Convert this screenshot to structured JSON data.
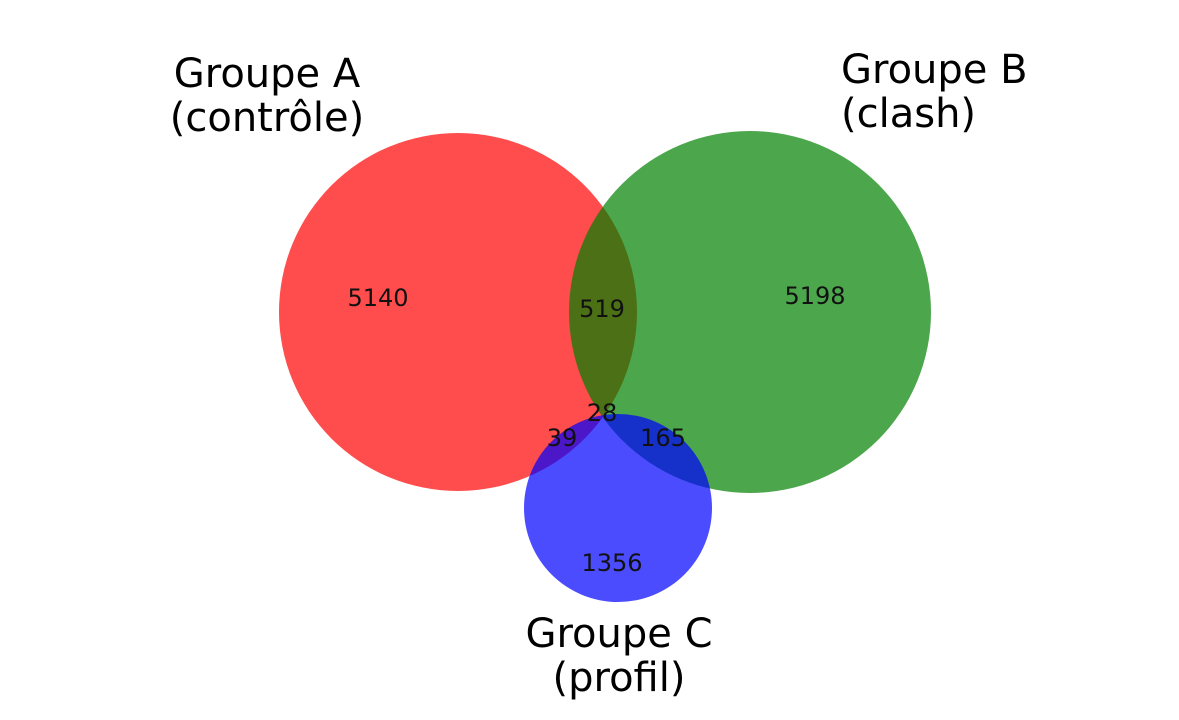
{
  "sets": [
    {
      "id": "a",
      "line1": "Groupe A",
      "line2": "(contrôle)",
      "color": "#ff0000"
    },
    {
      "id": "b",
      "line1": "Groupe B",
      "line2": "(clash)",
      "color": "#008000"
    },
    {
      "id": "c",
      "line1": "Groupe C",
      "line2": "(profil)",
      "color": "#0000ff"
    }
  ],
  "regions": {
    "a_only": "5140",
    "b_only": "5198",
    "c_only": "1356",
    "ab": "519",
    "ac": "39",
    "bc": "165",
    "abc": "28"
  },
  "style": {
    "fill_opacity": 0.7
  }
}
